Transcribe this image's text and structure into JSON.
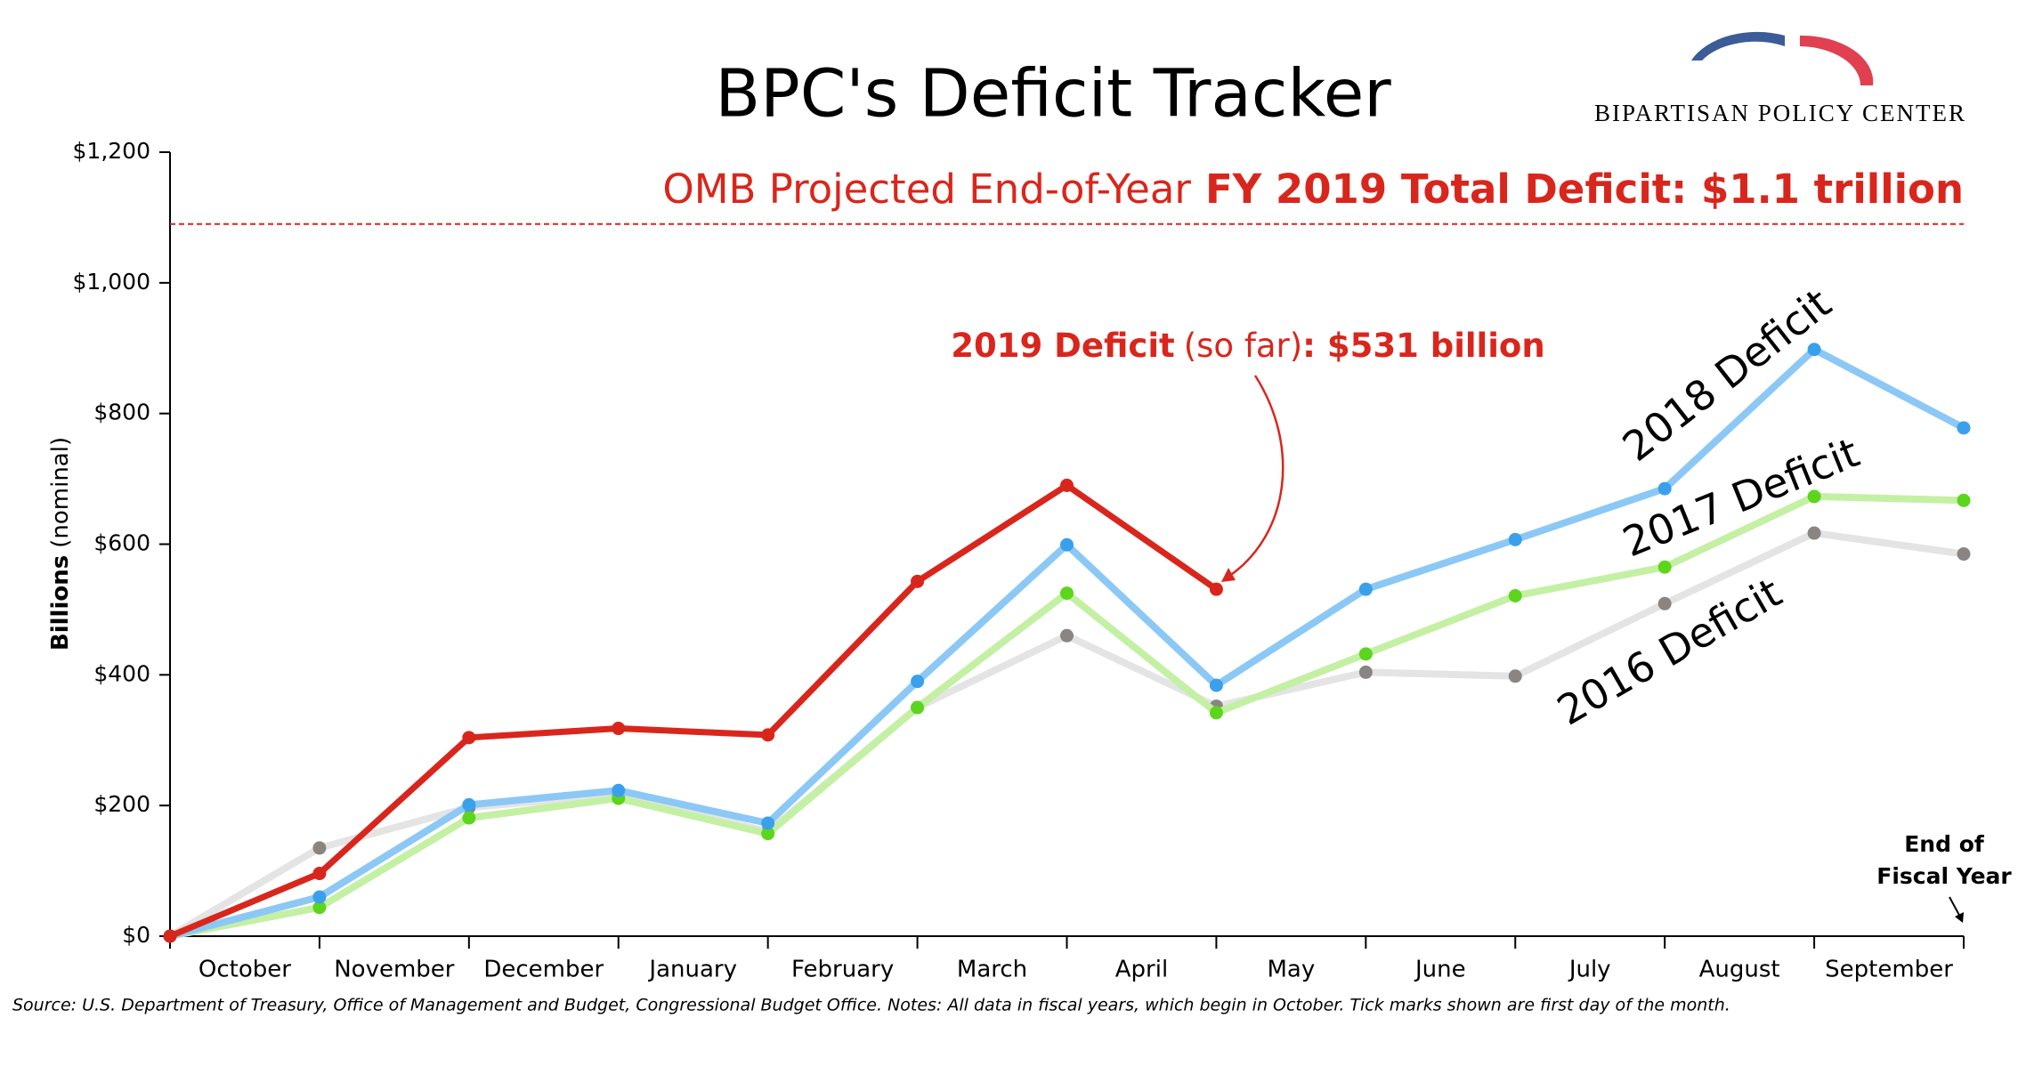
{
  "chart_data": {
    "type": "line",
    "title": "BPC's Deficit Tracker",
    "logo": "BIPARTISAN POLICY CENTER",
    "y_label": {
      "bold": "Billions",
      "regular": "(nominal)"
    },
    "categories": [
      "October",
      "November",
      "December",
      "January",
      "February",
      "March",
      "April",
      "May",
      "June",
      "July",
      "August",
      "September",
      null
    ],
    "series": [
      {
        "name": "2019 Deficit",
        "color": "#d9261c",
        "marker_color": "#d9261c",
        "values": [
          0,
          96,
          304,
          318,
          308,
          543,
          690,
          531,
          null,
          null,
          null,
          null,
          null
        ]
      },
      {
        "name": "2018 Deficit",
        "color": "#8cc8f5",
        "marker_color": "#3aa0ec",
        "values": [
          0,
          60,
          201,
          223,
          173,
          390,
          599,
          384,
          531,
          607,
          685,
          898,
          778
        ]
      },
      {
        "name": "2017 Deficit",
        "color": "#c4f0a4",
        "marker_color": "#5cd61c",
        "values": [
          0,
          44,
          181,
          211,
          157,
          350,
          525,
          342,
          432,
          521,
          565,
          673,
          667
        ]
      },
      {
        "name": "2016 Deficit",
        "color": "#e4e4e4",
        "marker_color": "#8a8580",
        "values": [
          0,
          135,
          197,
          217,
          160,
          350,
          460,
          352,
          404,
          398,
          509,
          617,
          585
        ]
      }
    ],
    "ylim": [
      0,
      1200
    ],
    "yticks": [
      {
        "value": 0,
        "label": "$0"
      },
      {
        "value": 200,
        "label": "$200"
      },
      {
        "value": 400,
        "label": "$400"
      },
      {
        "value": 600,
        "label": "$600"
      },
      {
        "value": 800,
        "label": "$800"
      },
      {
        "value": 1000,
        "label": "$1,000"
      },
      {
        "value": 1200,
        "label": "$1,200"
      }
    ],
    "projection": {
      "regular": "OMB Projected End-of-Year",
      "bold": "FY 2019 Total Deficit: $1.1 trillion",
      "value": 1090,
      "color": "#d9261c"
    },
    "current_annotation": {
      "regular": "(so far)",
      "bold": ": $531 billion"
    },
    "end_annotation": [
      "End of",
      "Fiscal Year"
    ],
    "source": "Source: U.S. Department of Treasury, Office of Management and Budget, Congressional Budget Office. Notes: All data in fiscal years, which begin in October. Tick marks shown are first day of the month."
  }
}
